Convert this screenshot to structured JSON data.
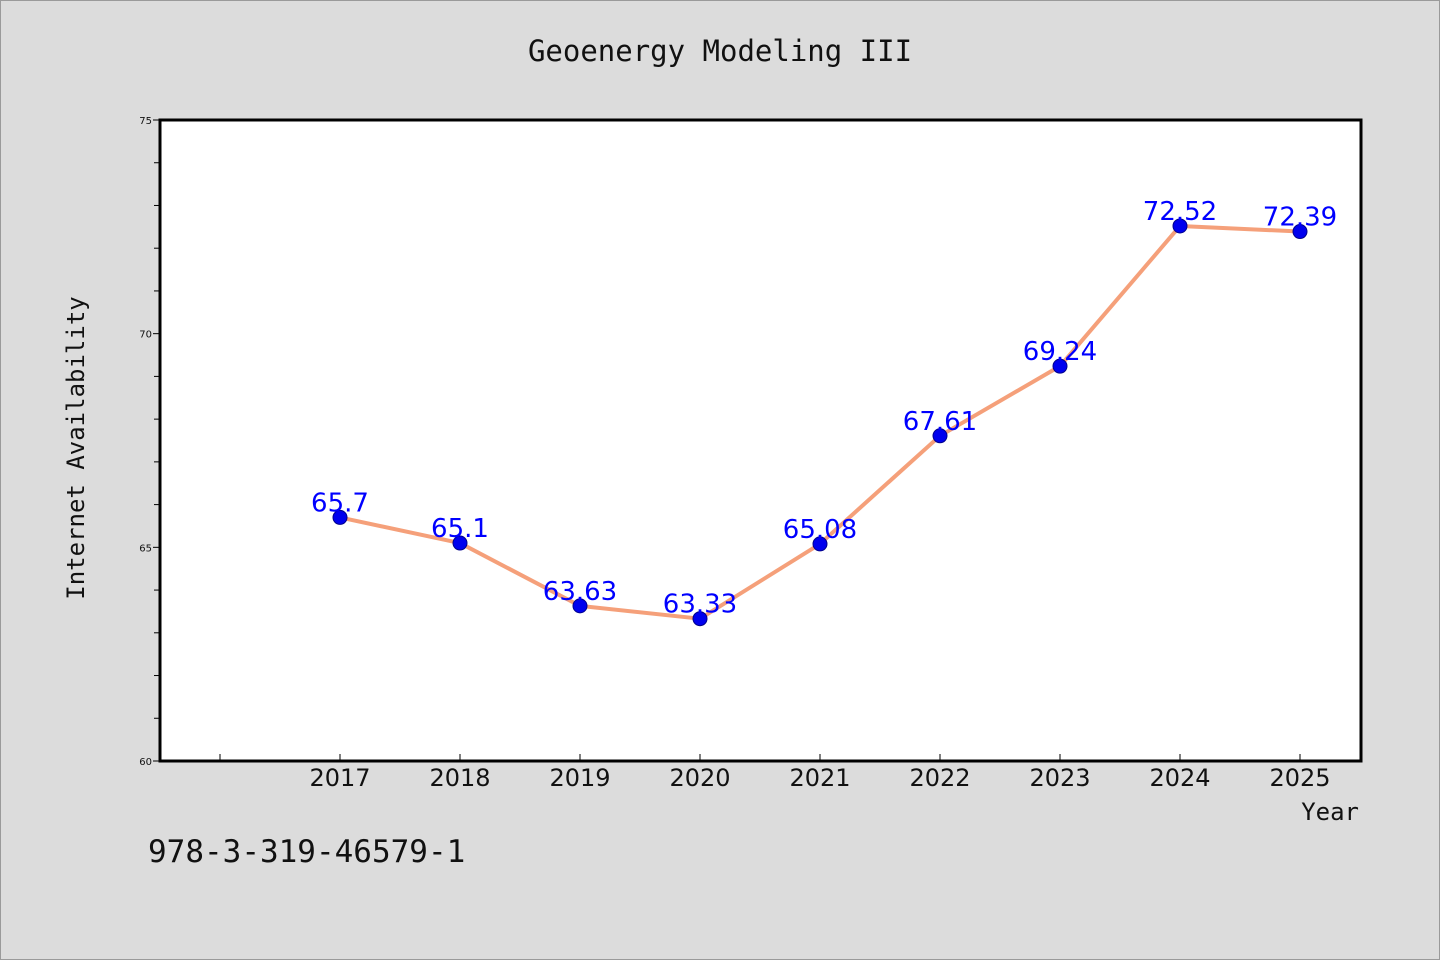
{
  "chart_data": {
    "type": "line",
    "title": "Geoenergy Modeling III",
    "xlabel": "Year",
    "ylabel": "Internet Availability",
    "categories": [
      "2017",
      "2018",
      "2019",
      "2020",
      "2021",
      "2022",
      "2023",
      "2024",
      "2025"
    ],
    "series": [
      {
        "values": [
          65.7,
          65.1,
          63.63,
          63.33,
          65.08,
          67.61,
          69.24,
          72.52,
          72.39
        ]
      }
    ],
    "data_labels": [
      "65.7",
      "65.1",
      "63.63",
      "63.33",
      "65.08",
      "67.61",
      "69.24",
      "72.52",
      "72.39"
    ],
    "ylim": [
      60,
      75
    ],
    "y_major_ticks": [
      60,
      65,
      70,
      75
    ],
    "y_minor_step": 1,
    "grid": false,
    "line_color": "#f5a07a",
    "marker_color": "#0000ee",
    "label_color": "#0000ff"
  },
  "footer": {
    "text": "978-3-319-46579-1"
  }
}
